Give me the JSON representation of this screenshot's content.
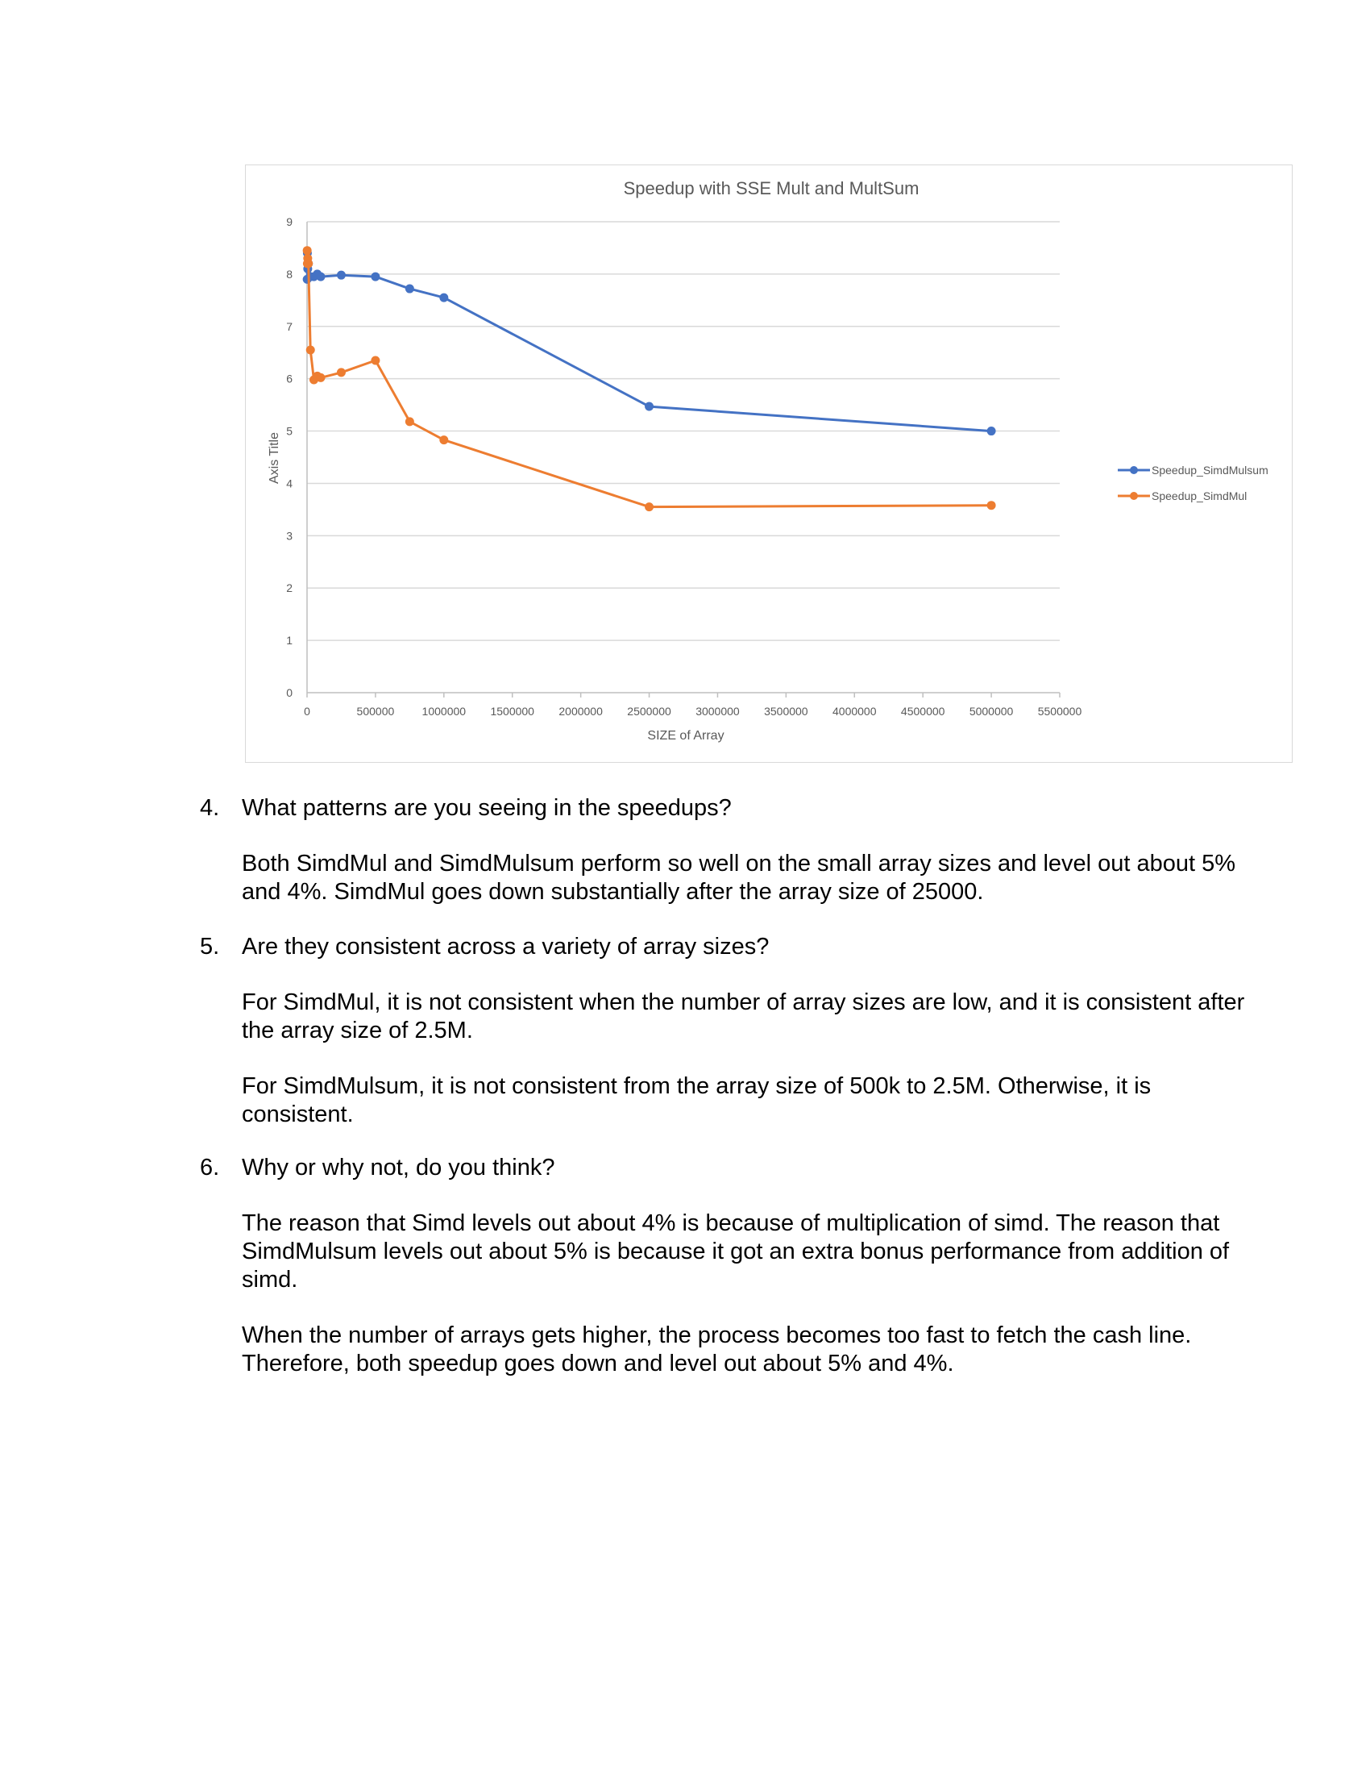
{
  "chart_data": {
    "type": "line",
    "title": "Speedup with SSE Mult and MultSum",
    "xlabel": "SIZE of Array",
    "ylabel": "Axis Title",
    "xlim": [
      0,
      5500000
    ],
    "ylim": [
      0,
      9
    ],
    "xticks": [
      0,
      500000,
      1000000,
      1500000,
      2000000,
      2500000,
      3000000,
      3500000,
      4000000,
      4500000,
      5000000,
      5500000
    ],
    "yticks": [
      0,
      1,
      2,
      3,
      4,
      5,
      6,
      7,
      8,
      9
    ],
    "grid": true,
    "legend_position": "right",
    "series": [
      {
        "name": "Speedup_SimdMulsum",
        "color": "#4472C4",
        "points": [
          [
            1000,
            7.9
          ],
          [
            2500,
            8.4
          ],
          [
            5000,
            8.1
          ],
          [
            10000,
            8.2
          ],
          [
            25000,
            7.95
          ],
          [
            50000,
            7.95
          ],
          [
            75000,
            8.0
          ],
          [
            100000,
            7.95
          ],
          [
            250000,
            7.98
          ],
          [
            500000,
            7.95
          ],
          [
            750000,
            7.72
          ],
          [
            1000000,
            7.55
          ],
          [
            2500000,
            5.47
          ],
          [
            5000000,
            5.0
          ]
        ]
      },
      {
        "name": "Speedup_SimdMul",
        "color": "#ED7D31",
        "points": [
          [
            1000,
            8.45
          ],
          [
            2500,
            8.2
          ],
          [
            5000,
            8.3
          ],
          [
            10000,
            8.2
          ],
          [
            25000,
            6.55
          ],
          [
            50000,
            5.98
          ],
          [
            75000,
            6.05
          ],
          [
            100000,
            6.02
          ],
          [
            250000,
            6.12
          ],
          [
            500000,
            6.35
          ],
          [
            750000,
            5.18
          ],
          [
            1000000,
            4.83
          ],
          [
            2500000,
            3.55
          ],
          [
            5000000,
            3.58
          ]
        ]
      }
    ]
  },
  "questions": [
    {
      "number": "4.",
      "question": "What patterns are you seeing in the speedups?",
      "answers": [
        "Both SimdMul and SimdMulsum perform so well on the small array sizes and level out about 5% and 4%. SimdMul goes down substantially after the array size of 25000."
      ]
    },
    {
      "number": "5.",
      "question": "Are they consistent across a variety of array sizes?",
      "answers": [
        "For SimdMul, it is not consistent when the number of array sizes are low, and it is consistent after the array size of 2.5M.",
        "For SimdMulsum, it is not consistent from the array size of 500k to 2.5M. Otherwise, it is consistent."
      ]
    },
    {
      "number": "6.",
      "question": "Why or why not, do you think?",
      "answers": [
        "The reason that Simd levels out about 4% is because of multiplication of simd. The reason that SimdMulsum levels out about 5% is because it got an extra bonus performance from addition of simd.",
        "When the number of arrays gets higher, the process becomes too fast to fetch the cash line. Therefore, both speedup goes down and level out about 5% and 4%."
      ]
    }
  ]
}
